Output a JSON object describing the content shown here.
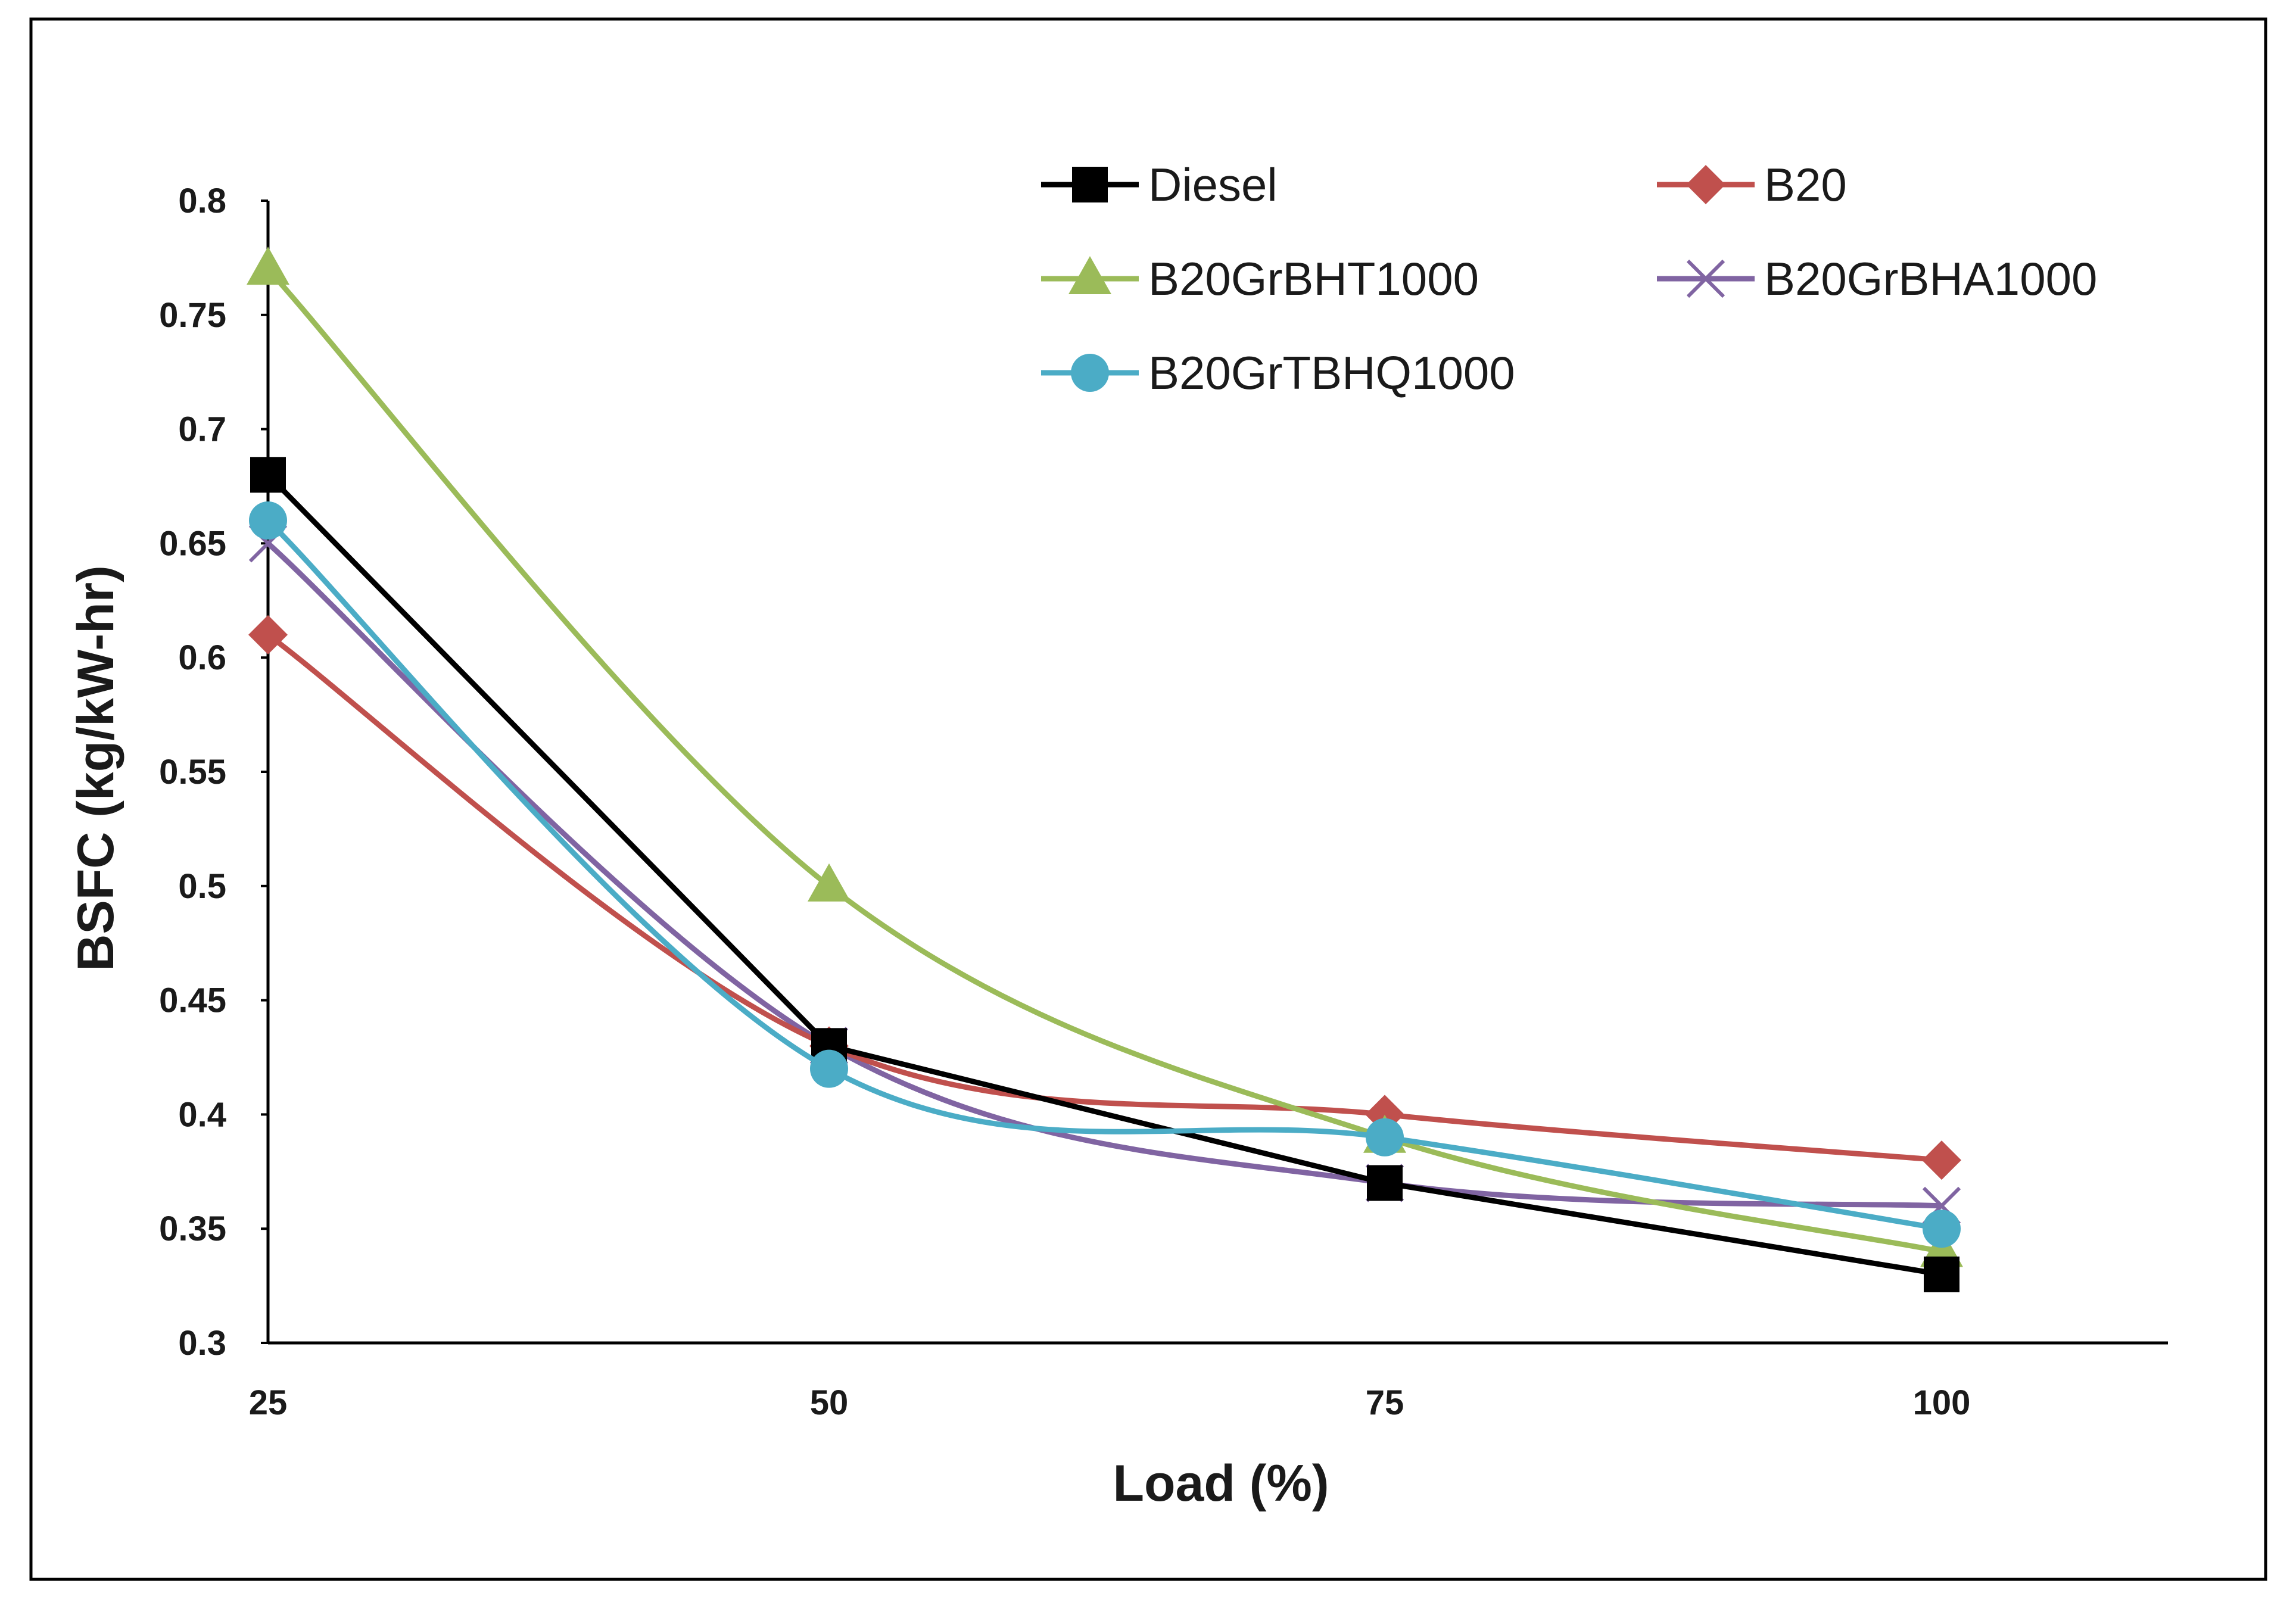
{
  "chart_data": {
    "type": "line",
    "title": "",
    "xlabel": "Load (%)",
    "ylabel": "BSFC (kg/kW-hr)",
    "categories": [
      "25",
      "50",
      "75",
      "100"
    ],
    "x": [
      25,
      50,
      75,
      100
    ],
    "ylim": [
      0.3,
      0.8
    ],
    "ytick_values": [
      0.3,
      0.35,
      0.4,
      0.45,
      0.5,
      0.55,
      0.6,
      0.65,
      0.7,
      0.75,
      0.8
    ],
    "ytick_labels": [
      "0.3",
      "0.35",
      "0.4",
      "0.45",
      "0.5",
      "0.55",
      "0.6",
      "0.65",
      "0.7",
      "0.75",
      "0.8"
    ],
    "grid": false,
    "legend_position": "top-right",
    "series": [
      {
        "name": "Diesel",
        "values": [
          0.68,
          0.43,
          0.37,
          0.33
        ],
        "color": "#000000",
        "marker": "square",
        "smooth": false
      },
      {
        "name": "B20",
        "values": [
          0.61,
          0.43,
          0.4,
          0.38
        ],
        "color": "#c0504d",
        "marker": "diamond",
        "smooth": true
      },
      {
        "name": "B20GrBHT1000",
        "values": [
          0.77,
          0.5,
          0.39,
          0.34
        ],
        "color": "#9bbb59",
        "marker": "triangle",
        "smooth": true
      },
      {
        "name": "B20GrBHA1000",
        "values": [
          0.65,
          0.43,
          0.37,
          0.36
        ],
        "color": "#8064a2",
        "marker": "x",
        "smooth": true
      },
      {
        "name": "B20GrTBHQ1000",
        "values": [
          0.66,
          0.42,
          0.39,
          0.35
        ],
        "color": "#4bacc6",
        "marker": "circle",
        "smooth": true
      }
    ]
  }
}
